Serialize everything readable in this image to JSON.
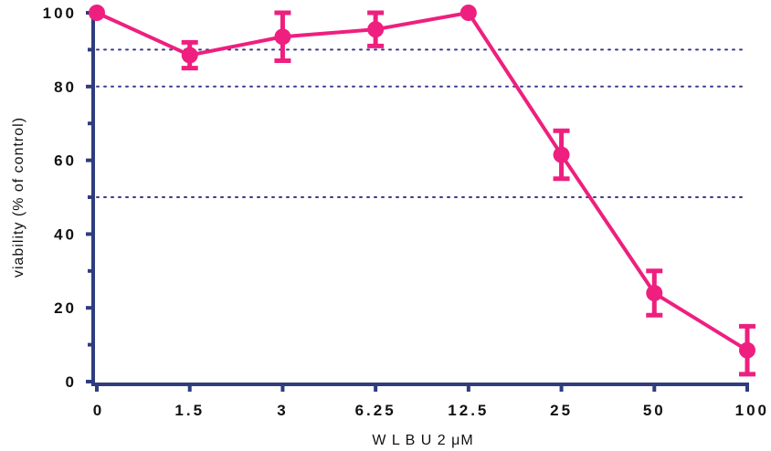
{
  "chart_data": {
    "type": "line",
    "title": "",
    "xlabel": "W L B U 2  μM",
    "ylabel": "viability (% of control)",
    "categories": [
      "0",
      "1.5",
      "3",
      "6.25",
      "12.5",
      "25",
      "50",
      "100"
    ],
    "series": [
      {
        "values": [
          100,
          88.5,
          93.5,
          95.5,
          100,
          61.5,
          24,
          8.5
        ],
        "error": [
          0,
          3.5,
          6.5,
          4.5,
          0,
          6.5,
          6,
          6.5
        ],
        "color": "#ee1f7f"
      }
    ],
    "yticks": [
      0,
      20,
      40,
      60,
      80,
      100
    ],
    "ylim": [
      0,
      100
    ],
    "reference_lines": [
      50,
      80,
      90
    ],
    "reference_line_color": "#3a3a8c",
    "axis_color": "#2f3c7e",
    "grid": false
  }
}
